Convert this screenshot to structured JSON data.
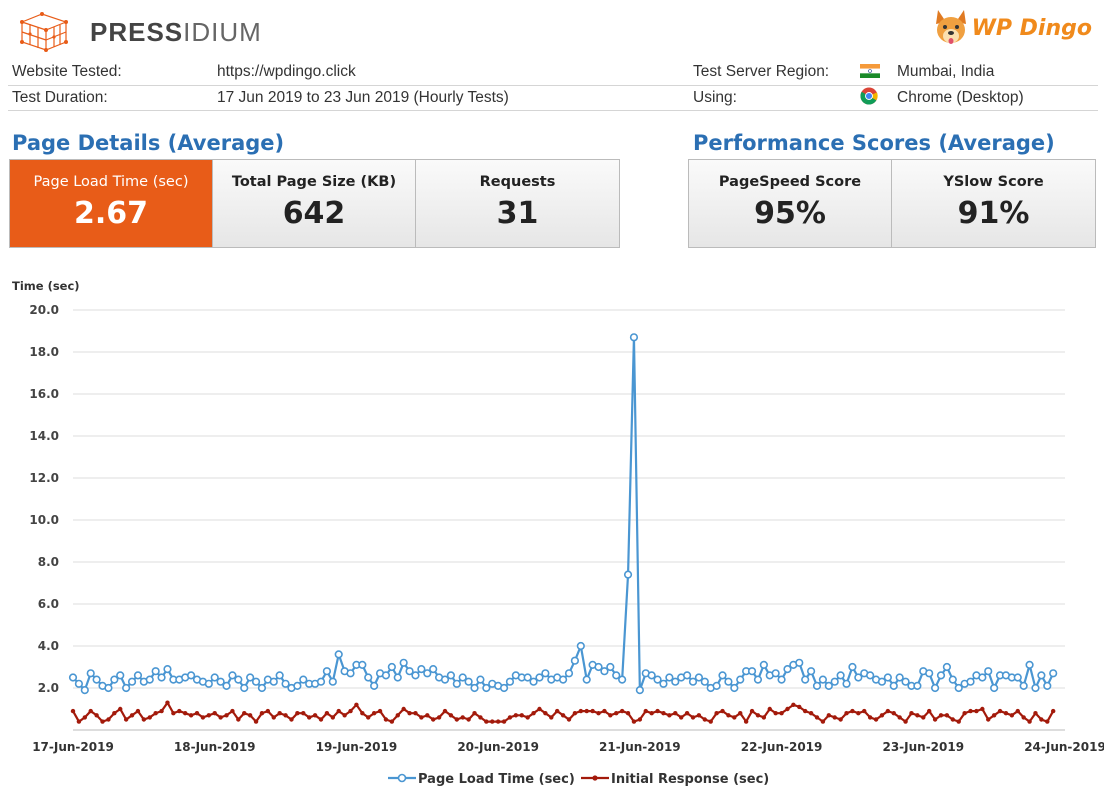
{
  "header": {
    "brand_left": "PRESS",
    "brand_left_light": "IDIUM",
    "brand_right": "WP Dingo",
    "website_label": "Website Tested:",
    "website_value": "https://wpdingo.click",
    "duration_label": "Test Duration:",
    "duration_value": "17 Jun 2019 to 23 Jun 2019 (Hourly Tests)",
    "region_label": "Test Server Region:",
    "region_value": "Mumbai, India",
    "using_label": "Using:",
    "using_value": "Chrome (Desktop)"
  },
  "page_details": {
    "title": "Page Details (Average)",
    "load_time_label": "Page Load Time (sec)",
    "load_time_value": "2.67",
    "page_size_label": "Total Page Size (KB)",
    "page_size_value": "642",
    "requests_label": "Requests",
    "requests_value": "31"
  },
  "performance": {
    "title": "Performance Scores (Average)",
    "pagespeed_label": "PageSpeed Score",
    "pagespeed_value": "95%",
    "yslow_label": "YSlow Score",
    "yslow_value": "91%"
  },
  "colors": {
    "accent": "#e85c18",
    "title_blue": "#2b6fb3",
    "load_series": "#4a96d2",
    "response_series": "#a31a0b"
  },
  "chart_data": {
    "type": "line",
    "title": "",
    "ylabel": "Time (sec)",
    "xlabel": "",
    "ylim": [
      0,
      20
    ],
    "yticks": [
      "20.0",
      "18.0",
      "16.0",
      "14.0",
      "12.0",
      "10.0",
      "8.0",
      "6.0",
      "4.0",
      "2.0"
    ],
    "ytick_values": [
      20,
      18,
      16,
      14,
      12,
      10,
      8,
      6,
      4,
      2
    ],
    "xticks": [
      "17-Jun-2019",
      "18-Jun-2019",
      "19-Jun-2019",
      "20-Jun-2019",
      "21-Jun-2019",
      "22-Jun-2019",
      "23-Jun-2019",
      "24-Jun-2019"
    ],
    "x_start_day": 0,
    "x_end_day": 7,
    "legend_position": "bottom",
    "series": [
      {
        "name": "Page Load Time (sec)",
        "values": [
          2.5,
          2.2,
          1.9,
          2.7,
          2.4,
          2.1,
          2.0,
          2.4,
          2.6,
          2.0,
          2.3,
          2.6,
          2.3,
          2.4,
          2.8,
          2.5,
          2.9,
          2.4,
          2.4,
          2.5,
          2.6,
          2.4,
          2.3,
          2.2,
          2.5,
          2.3,
          2.1,
          2.6,
          2.4,
          2.0,
          2.5,
          2.3,
          2.0,
          2.4,
          2.3,
          2.6,
          2.2,
          2.0,
          2.1,
          2.4,
          2.2,
          2.2,
          2.3,
          2.8,
          2.3,
          3.6,
          2.8,
          2.7,
          3.1,
          3.1,
          2.5,
          2.1,
          2.7,
          2.6,
          3.0,
          2.5,
          3.2,
          2.8,
          2.6,
          2.9,
          2.7,
          2.9,
          2.5,
          2.4,
          2.6,
          2.2,
          2.5,
          2.3,
          2.0,
          2.4,
          2.0,
          2.2,
          2.1,
          2.0,
          2.3,
          2.6,
          2.5,
          2.5,
          2.3,
          2.5,
          2.7,
          2.4,
          2.5,
          2.4,
          2.7,
          3.3,
          4.0,
          2.4,
          3.1,
          3.0,
          2.8,
          3.0,
          2.6,
          2.4,
          7.4,
          18.7,
          1.9,
          2.7,
          2.6,
          2.4,
          2.2,
          2.5,
          2.3,
          2.5,
          2.6,
          2.3,
          2.5,
          2.3,
          2.0,
          2.1,
          2.6,
          2.3,
          2.0,
          2.4,
          2.8,
          2.8,
          2.4,
          3.1,
          2.6,
          2.7,
          2.4,
          2.9,
          3.1,
          3.2,
          2.4,
          2.8,
          2.1,
          2.4,
          2.1,
          2.3,
          2.6,
          2.2,
          3.0,
          2.5,
          2.7,
          2.6,
          2.4,
          2.3,
          2.5,
          2.1,
          2.5,
          2.3,
          2.1,
          2.1,
          2.8,
          2.7,
          2.0,
          2.6,
          3.0,
          2.4,
          2.0,
          2.2,
          2.3,
          2.6,
          2.5,
          2.8,
          2.0,
          2.6,
          2.6,
          2.5,
          2.5,
          2.1,
          3.1,
          2.0,
          2.6,
          2.1,
          2.7
        ],
        "color": "#4a96d2"
      },
      {
        "name": "Initial Response (sec)",
        "values": [
          0.9,
          0.4,
          0.6,
          0.9,
          0.7,
          0.4,
          0.5,
          0.8,
          1.0,
          0.5,
          0.7,
          0.9,
          0.5,
          0.6,
          0.8,
          0.9,
          1.3,
          0.8,
          0.9,
          0.8,
          0.7,
          0.8,
          0.6,
          0.7,
          0.8,
          0.6,
          0.7,
          0.9,
          0.5,
          0.8,
          0.7,
          0.4,
          0.8,
          0.9,
          0.6,
          0.8,
          0.7,
          0.5,
          0.8,
          0.8,
          0.6,
          0.7,
          0.5,
          0.8,
          0.6,
          0.9,
          0.7,
          0.9,
          1.2,
          0.8,
          0.6,
          0.8,
          0.9,
          0.5,
          0.4,
          0.7,
          1.0,
          0.8,
          0.8,
          0.6,
          0.7,
          0.5,
          0.6,
          0.9,
          0.7,
          0.5,
          0.6,
          0.5,
          0.8,
          0.6,
          0.4,
          0.4,
          0.4,
          0.4,
          0.6,
          0.7,
          0.7,
          0.6,
          0.8,
          1.0,
          0.8,
          0.6,
          0.9,
          0.7,
          0.5,
          0.8,
          0.9,
          0.9,
          0.9,
          0.8,
          0.9,
          0.7,
          0.8,
          0.9,
          0.8,
          0.4,
          0.5,
          0.9,
          0.8,
          0.9,
          0.8,
          0.7,
          0.8,
          0.6,
          0.8,
          0.6,
          0.7,
          0.5,
          0.4,
          0.8,
          0.9,
          0.7,
          0.6,
          0.8,
          0.4,
          0.9,
          0.7,
          0.6,
          1.0,
          0.8,
          0.8,
          1.0,
          1.2,
          1.1,
          0.9,
          0.8,
          0.6,
          0.4,
          0.7,
          0.6,
          0.5,
          0.8,
          0.9,
          0.8,
          0.9,
          0.6,
          0.5,
          0.7,
          0.9,
          0.8,
          0.6,
          0.4,
          0.8,
          0.7,
          0.6,
          0.9,
          0.5,
          0.7,
          0.7,
          0.5,
          0.4,
          0.8,
          0.9,
          0.9,
          1.0,
          0.5,
          0.7,
          0.9,
          0.8,
          0.7,
          0.9,
          0.6,
          0.4,
          0.8,
          0.5,
          0.4,
          0.9
        ],
        "color": "#a31a0b"
      }
    ]
  }
}
